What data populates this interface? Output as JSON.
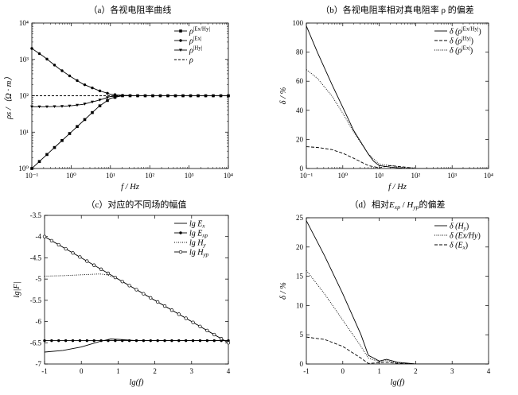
{
  "chart_data": [
    {
      "type": "line",
      "id": "a",
      "title": "（a）各视电阻率曲线",
      "xlabel": "f / Hz",
      "ylabel": "ρs /（Ω · m）",
      "xscale": "log",
      "yscale": "log",
      "xlim": [
        0.1,
        10000
      ],
      "ylim": [
        1,
        10000
      ],
      "x_ticks": [
        "10⁻¹",
        "10⁰",
        "10¹",
        "10²",
        "10³",
        "10⁴"
      ],
      "y_ticks": [
        "10⁰",
        "10¹",
        "10²",
        "10³",
        "10⁴"
      ],
      "legend_position": "top-right",
      "grid": false,
      "series": [
        {
          "name": "ρ^|Ex/Hy|",
          "label_base": "ρ",
          "label_sup": "|Ex/Hy|",
          "marker": "square",
          "dash": "",
          "x": [
            0.1,
            0.2,
            0.5,
            1,
            2,
            5,
            10,
            20,
            50,
            100,
            1000,
            10000
          ],
          "y": [
            1,
            2,
            5,
            10,
            20,
            50,
            85,
            100,
            100,
            100,
            100,
            100
          ]
        },
        {
          "name": "ρ^|Ex|",
          "label_base": "ρ",
          "label_sup": "|Ex|",
          "marker": "dot",
          "dash": "",
          "x": [
            0.1,
            0.2,
            0.5,
            1,
            2,
            5,
            10,
            20,
            50,
            100,
            1000,
            10000
          ],
          "y": [
            2000,
            1200,
            550,
            330,
            210,
            140,
            110,
            103,
            100,
            100,
            100,
            100
          ]
        },
        {
          "name": "ρ^|Hy|",
          "label_base": "ρ",
          "label_sup": "|Hy|",
          "marker": "triangle",
          "dash": "",
          "x": [
            0.1,
            0.2,
            0.5,
            1,
            2,
            5,
            10,
            20,
            50,
            100,
            1000,
            10000
          ],
          "y": [
            50,
            50,
            51,
            53,
            58,
            75,
            95,
            100,
            100,
            100,
            100,
            100
          ]
        },
        {
          "name": "ρ",
          "label_base": "ρ",
          "label_sup": "",
          "marker": "none",
          "dash": "3,2",
          "x": [
            0.1,
            10000
          ],
          "y": [
            100,
            100
          ]
        }
      ]
    },
    {
      "type": "line",
      "id": "b",
      "title": "（b）各视电阻率相对真电阻率 ρ 的偏差",
      "xlabel": "f / Hz",
      "ylabel": "δ / %",
      "xscale": "log",
      "yscale": "linear",
      "xlim": [
        0.1,
        10000
      ],
      "ylim": [
        0,
        100
      ],
      "x_ticks": [
        "10⁻¹",
        "10⁰",
        "10¹",
        "10²",
        "10³",
        "10⁴"
      ],
      "y_ticks": [
        "0",
        "20",
        "40",
        "60",
        "80",
        "100"
      ],
      "legend_position": "top-right",
      "grid": false,
      "series": [
        {
          "name": "δ(ρ^|Ex/Hy|)",
          "label_base": "δ (ρ",
          "label_sup": "|Ex/Hy|",
          "label_close": ")",
          "marker": "none",
          "dash": "",
          "x": [
            0.1,
            0.2,
            0.5,
            1,
            2,
            5,
            7,
            10,
            20,
            50,
            100,
            1000,
            10000
          ],
          "y": [
            98,
            80,
            58,
            42,
            26,
            10,
            5,
            2,
            1,
            0,
            0,
            0,
            0
          ]
        },
        {
          "name": "δ(ρ^|Hy|)",
          "label_base": "δ (ρ",
          "label_sup": "|Hy|",
          "label_close": ")",
          "marker": "none",
          "dash": "4,2",
          "x": [
            0.1,
            0.2,
            0.5,
            1,
            2,
            5,
            10,
            20,
            50,
            100,
            1000,
            10000
          ],
          "y": [
            15,
            14.5,
            13,
            10.5,
            7,
            2,
            0.5,
            2,
            1,
            0,
            0,
            0
          ]
        },
        {
          "name": "δ(ρ^|Ex|)",
          "label_base": "δ (ρ",
          "label_sup": "|Ex|",
          "label_close": ")",
          "marker": "none",
          "dash": "1,1.5",
          "x": [
            0.1,
            0.2,
            0.5,
            1,
            2,
            5,
            10,
            20,
            50,
            100,
            1000,
            10000
          ],
          "y": [
            68,
            62,
            50,
            38,
            25,
            10,
            3,
            2,
            0.5,
            0,
            0,
            0
          ]
        }
      ]
    },
    {
      "type": "line",
      "id": "c",
      "title": "（c）对应的不同场的幅值",
      "xlabel": "lg(f)",
      "ylabel": "lg|F|",
      "xscale": "linear",
      "yscale": "linear",
      "xlim": [
        -1,
        4
      ],
      "ylim": [
        -7,
        -3.5
      ],
      "x_ticks": [
        "-1",
        "0",
        "1",
        "2",
        "3",
        "4"
      ],
      "y_ticks": [
        "-3.5",
        "-4",
        "-4.5",
        "-5",
        "-5.5",
        "-6",
        "-6.5",
        "-7"
      ],
      "legend_position": "top-right",
      "grid": false,
      "series": [
        {
          "name": "lg Ex",
          "label_base": "lg E",
          "label_sub": "x",
          "marker": "none",
          "dash": "",
          "x": [
            -1,
            -0.5,
            0,
            0.5,
            0.8,
            1,
            1.5,
            2,
            4
          ],
          "y": [
            -6.72,
            -6.68,
            -6.6,
            -6.47,
            -6.41,
            -6.42,
            -6.45,
            -6.45,
            -6.45
          ]
        },
        {
          "name": "lg Exp",
          "label_base": "lg E",
          "label_sub": "xp",
          "marker": "dot",
          "dash": "",
          "x": [
            -1,
            4
          ],
          "y": [
            -6.45,
            -6.45
          ]
        },
        {
          "name": "lg Hy",
          "label_base": "lg H",
          "label_sub": "y",
          "marker": "none",
          "dash": "1,1.5",
          "x": [
            -1,
            -0.5,
            0,
            0.5,
            0.7,
            1,
            1.5,
            2,
            2.5,
            3,
            3.5,
            4
          ],
          "y": [
            -4.93,
            -4.92,
            -4.9,
            -4.88,
            -4.9,
            -5,
            -5.25,
            -5.5,
            -5.75,
            -6,
            -6.25,
            -6.5
          ]
        },
        {
          "name": "lg Hyp",
          "label_base": "lg H",
          "label_sub": "yp",
          "marker": "circle",
          "dash": "",
          "x": [
            -1,
            4
          ],
          "y": [
            -4,
            -6.5
          ]
        }
      ]
    },
    {
      "type": "line",
      "id": "d",
      "title_parts": [
        "（d）相对",
        "E",
        "xp",
        "/ ",
        "H",
        "yp",
        "的偏差"
      ],
      "xlabel": "lg(f)",
      "ylabel": "δ / %",
      "xscale": "linear",
      "yscale": "linear",
      "xlim": [
        -1,
        4
      ],
      "ylim": [
        0,
        25
      ],
      "x_ticks": [
        "-1",
        "0",
        "1",
        "2",
        "3",
        "4"
      ],
      "y_ticks": [
        "0",
        "5",
        "10",
        "15",
        "20",
        "25"
      ],
      "legend_position": "top-right",
      "grid": false,
      "series": [
        {
          "name": "δ(Hy)",
          "label_base": "δ (H",
          "label_sub": "y",
          "label_close": ")",
          "marker": "none",
          "dash": "",
          "x": [
            -1,
            -0.5,
            0,
            0.5,
            0.7,
            1,
            1.2,
            1.5,
            2,
            4
          ],
          "y": [
            24.5,
            18.5,
            12,
            5,
            1.5,
            0.5,
            0.8,
            0.3,
            0,
            0
          ]
        },
        {
          "name": "δ(Ex/Hy)",
          "label_base": "δ (Ex/Hy",
          "label_sub": "",
          "label_close": ")",
          "marker": "none",
          "dash": "1,1.5",
          "x": [
            -1,
            -0.5,
            0,
            0.5,
            0.7,
            1,
            1.2,
            1.5,
            2,
            4
          ],
          "y": [
            16,
            12,
            7.5,
            3,
            1,
            0.4,
            0.6,
            0.2,
            0,
            0
          ]
        },
        {
          "name": "δ(Ex)",
          "label_base": "δ (E",
          "label_sub": "x",
          "label_close": ")",
          "marker": "none",
          "dash": "4,2",
          "x": [
            -1,
            -0.5,
            0,
            0.5,
            0.7,
            1,
            1.2,
            1.5,
            2,
            4
          ],
          "y": [
            4.6,
            4.2,
            3,
            1,
            0.1,
            0.2,
            0.3,
            0.1,
            0,
            0
          ]
        }
      ]
    }
  ]
}
